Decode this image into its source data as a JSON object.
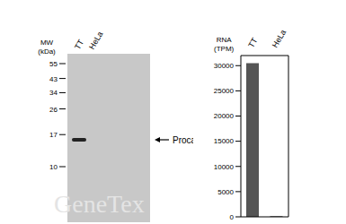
{
  "blot": {
    "lanes": [
      "TT",
      "HeLa"
    ],
    "mw_label": [
      "MW",
      "(kDa)"
    ],
    "markers": [
      55,
      43,
      34,
      26,
      17,
      10
    ],
    "band_label": "Procalcitonin"
  },
  "watermark": "GeneTex",
  "chart_data": {
    "type": "bar",
    "y_label": [
      "RNA",
      "(TPM)"
    ],
    "categories": [
      "TT",
      "HeLa"
    ],
    "values": [
      30500,
      150
    ],
    "color": "#555555",
    "ylim": [
      0,
      32000
    ],
    "yticks": [
      0,
      5000,
      10000,
      15000,
      20000,
      25000,
      30000
    ],
    "grid": false
  }
}
